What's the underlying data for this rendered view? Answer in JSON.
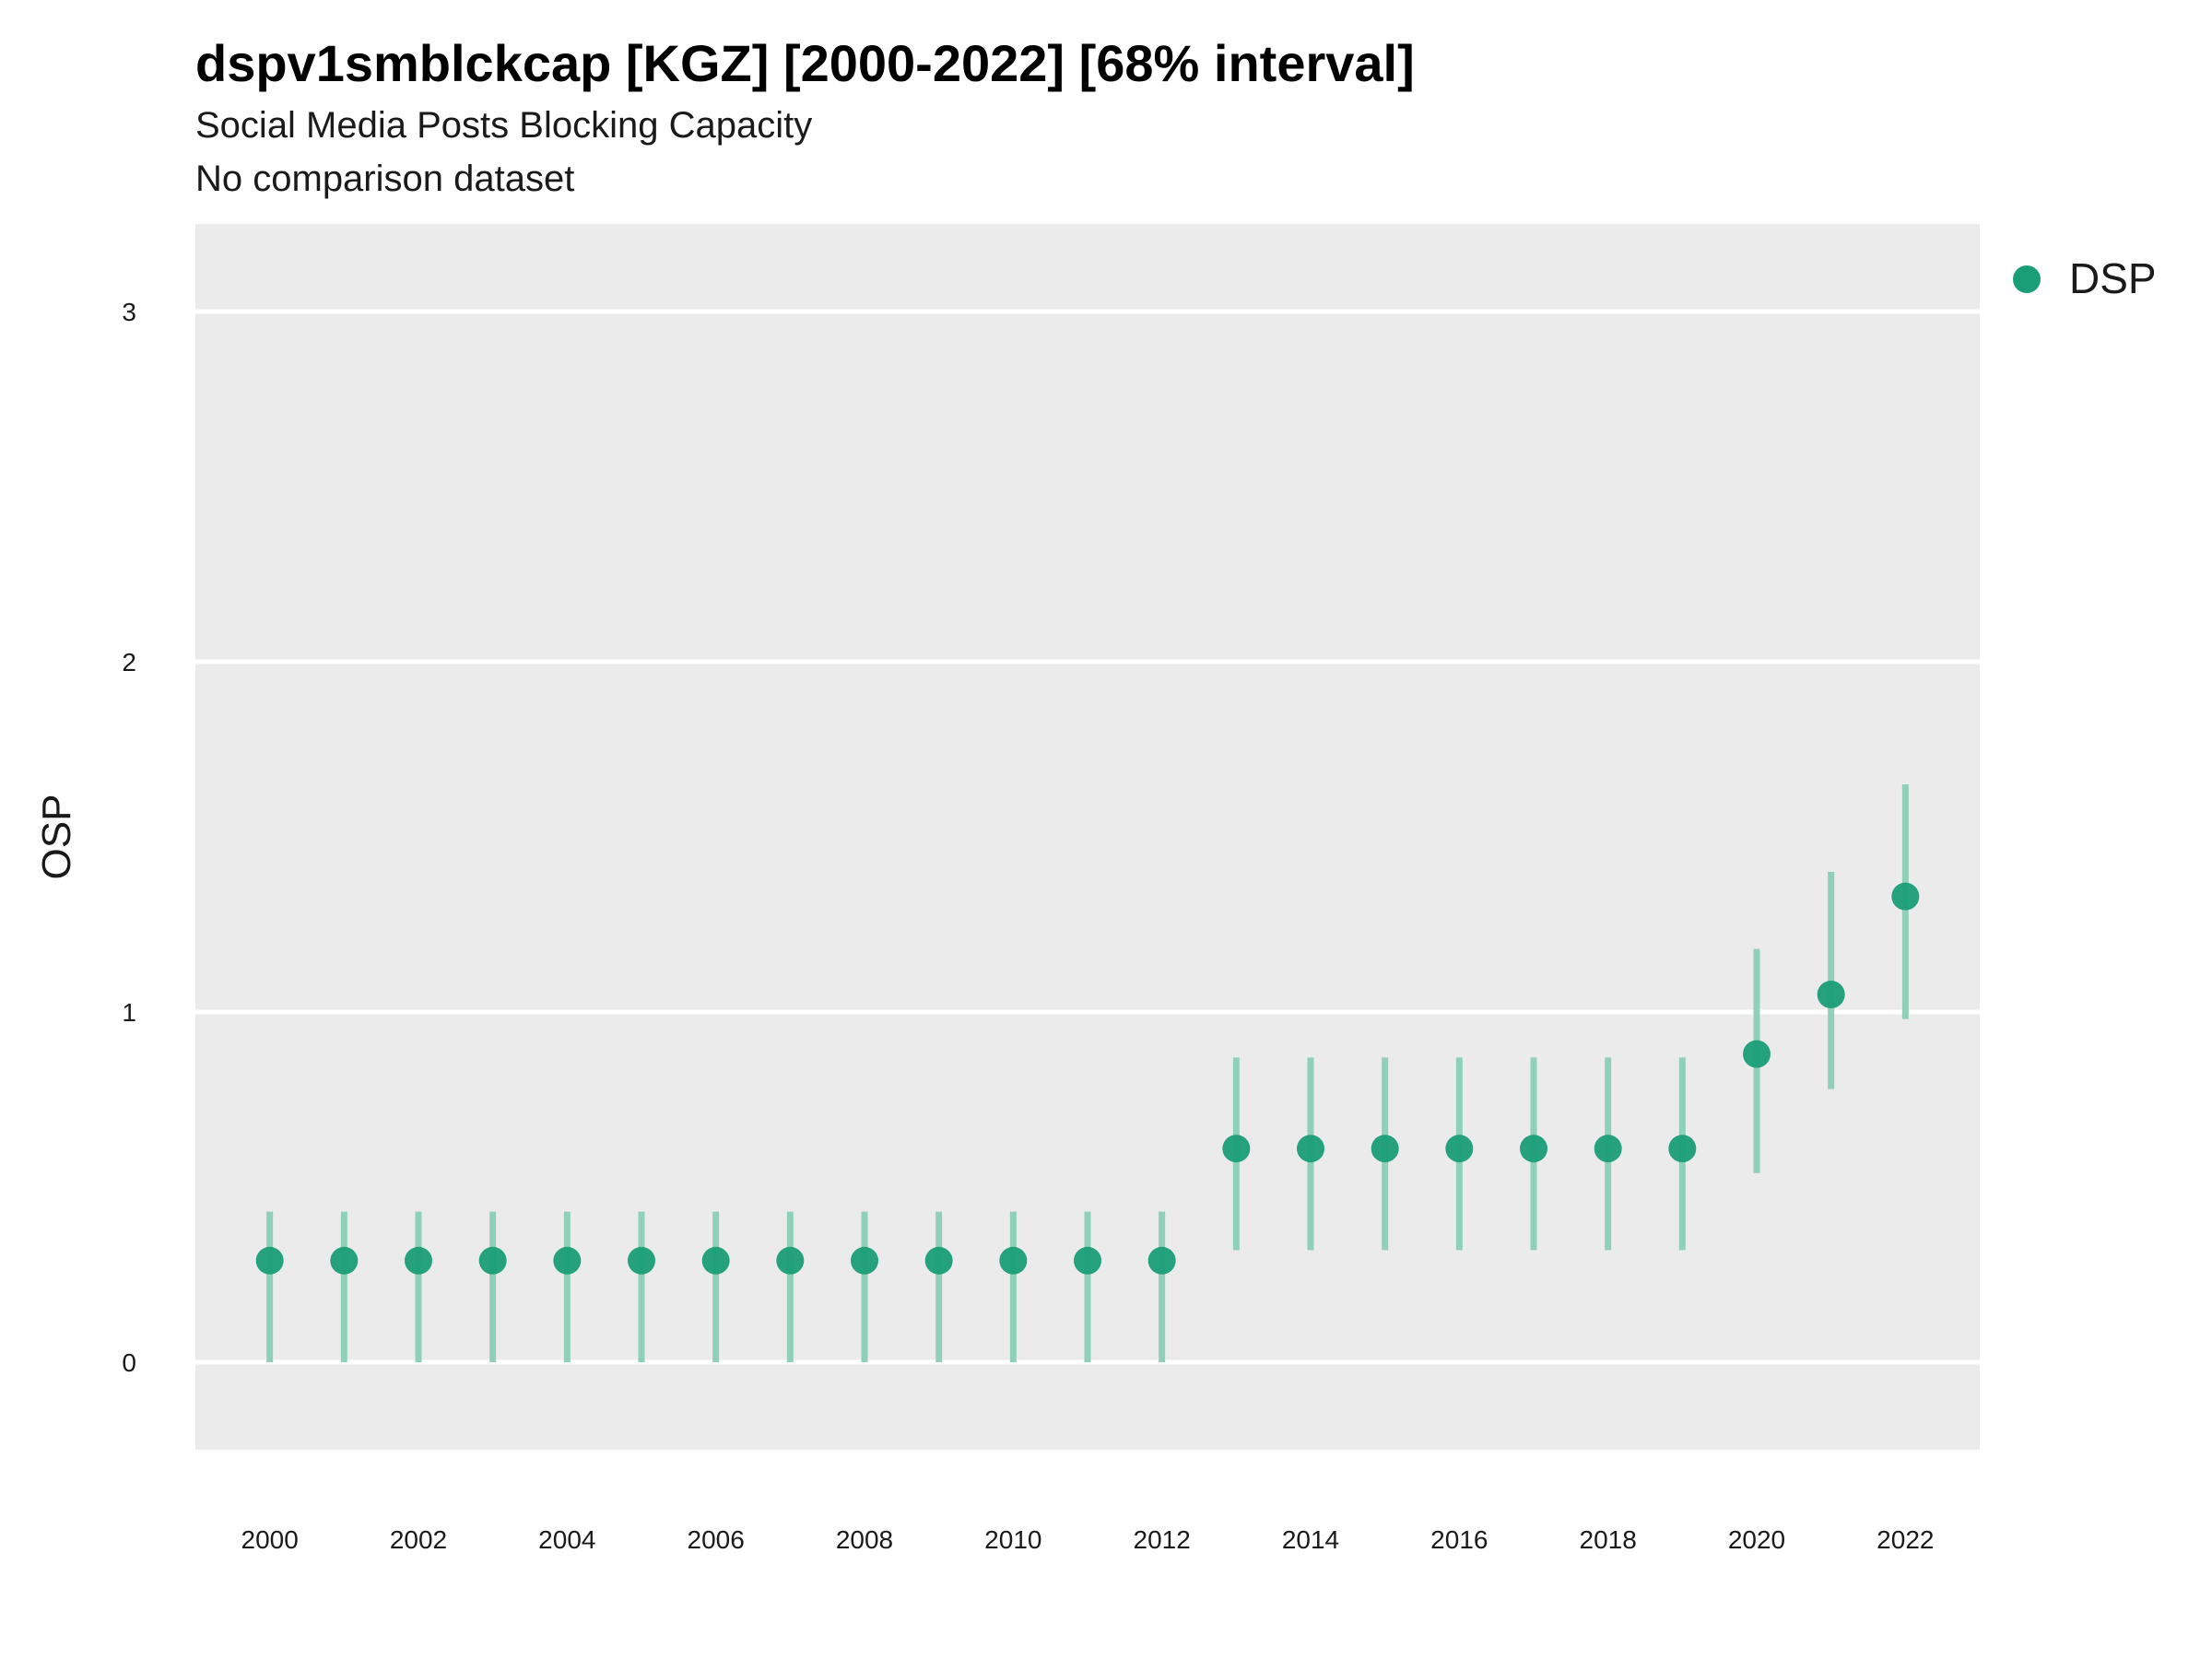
{
  "title": "dspv1smblckcap [KGZ] [2000-2022] [68% interval]",
  "subtitle": "Social Media Posts Blocking Capacity",
  "subtitle2": "No comparison dataset",
  "chart_data": {
    "type": "scatter",
    "ylabel": "OSP",
    "xlabel": "",
    "ylim": [
      -0.25,
      3.25
    ],
    "xlim": [
      1999,
      2023
    ],
    "yticks": [
      0,
      1,
      2,
      3
    ],
    "xticks": [
      2000,
      2002,
      2004,
      2006,
      2008,
      2010,
      2012,
      2014,
      2016,
      2018,
      2020,
      2022
    ],
    "grid": "on",
    "legend": "right",
    "colors": {
      "point": "#1a9e77",
      "interval": "#8fd0b8",
      "panel": "#ebebeb",
      "grid": "#ffffff"
    },
    "series": [
      {
        "name": "DSP",
        "x": [
          2000,
          2001,
          2002,
          2003,
          2004,
          2005,
          2006,
          2007,
          2008,
          2009,
          2010,
          2011,
          2012,
          2013,
          2014,
          2015,
          2016,
          2017,
          2018,
          2019,
          2020,
          2021,
          2022
        ],
        "y": [
          0.29,
          0.29,
          0.29,
          0.29,
          0.29,
          0.29,
          0.29,
          0.29,
          0.29,
          0.29,
          0.29,
          0.29,
          0.29,
          0.61,
          0.61,
          0.61,
          0.61,
          0.61,
          0.61,
          0.61,
          0.88,
          1.05,
          1.33
        ],
        "lower": [
          0.0,
          0.0,
          0.0,
          0.0,
          0.0,
          0.0,
          0.0,
          0.0,
          0.0,
          0.0,
          0.0,
          0.0,
          0.0,
          0.32,
          0.32,
          0.32,
          0.32,
          0.32,
          0.32,
          0.32,
          0.54,
          0.78,
          0.98
        ],
        "upper": [
          0.43,
          0.43,
          0.43,
          0.43,
          0.43,
          0.43,
          0.43,
          0.43,
          0.43,
          0.43,
          0.43,
          0.43,
          0.43,
          0.87,
          0.87,
          0.87,
          0.87,
          0.87,
          0.87,
          0.87,
          1.18,
          1.4,
          1.65
        ]
      }
    ]
  }
}
